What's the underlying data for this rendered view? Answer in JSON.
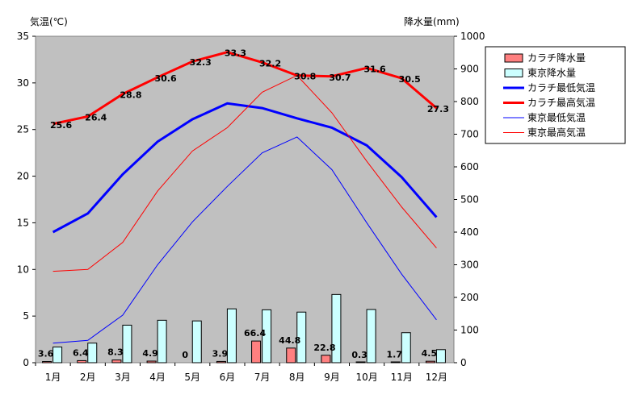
{
  "chart_data": {
    "type": "bar+line",
    "title": "",
    "ylabel_left": "気温(℃)",
    "ylabel_right": "降水量(mm)",
    "categories": [
      "1月",
      "2月",
      "3月",
      "4月",
      "5月",
      "6月",
      "7月",
      "8月",
      "9月",
      "10月",
      "11月",
      "12月"
    ],
    "ylim_left": [
      0,
      35
    ],
    "yticks_left": [
      "0",
      "5",
      "10",
      "15",
      "20",
      "25",
      "30",
      "35"
    ],
    "ylim_right": [
      0,
      1000
    ],
    "yticks_right": [
      "0",
      "100",
      "200",
      "300",
      "400",
      "500",
      "600",
      "700",
      "800",
      "900",
      "1000"
    ],
    "plot_background": "#c0c0c0",
    "series": [
      {
        "name": "カラチ降水量",
        "kind": "bar",
        "axis": "right",
        "color": "#ff8080",
        "values": [
          3.6,
          6.4,
          8.3,
          4.9,
          0,
          3.9,
          66.4,
          44.8,
          22.8,
          0.3,
          1.7,
          4.5
        ],
        "labels": [
          "3.6",
          "6.4",
          "8.3",
          "4.9",
          "0",
          "3.9",
          "66.4",
          "44.8",
          "22.8",
          "0.3",
          "1.7",
          "4.5"
        ]
      },
      {
        "name": "東京降水量",
        "kind": "bar",
        "axis": "right",
        "color": "#ccffff",
        "values": [
          48,
          60,
          115,
          130,
          128,
          165,
          162,
          155,
          209,
          163,
          92,
          40
        ]
      },
      {
        "name": "カラチ最低気温",
        "kind": "line",
        "axis": "left",
        "color": "#0000ff",
        "width": 3,
        "values": [
          14.0,
          16.0,
          20.2,
          23.7,
          26.1,
          27.8,
          27.3,
          26.2,
          25.2,
          23.3,
          19.9,
          15.6
        ]
      },
      {
        "name": "カラチ最高気温",
        "kind": "line",
        "axis": "left",
        "color": "#ff0000",
        "width": 3,
        "values": [
          25.6,
          26.4,
          28.8,
          30.6,
          32.3,
          33.3,
          32.2,
          30.8,
          30.7,
          31.6,
          30.5,
          27.3
        ],
        "labels": [
          "25.6",
          "26.4",
          "28.8",
          "30.6",
          "32.3",
          "33.3",
          "32.2",
          "30.8",
          "30.7",
          "31.6",
          "30.5",
          "27.3"
        ]
      },
      {
        "name": "東京最低気温",
        "kind": "line",
        "axis": "left",
        "color": "#0000ff",
        "width": 1,
        "values": [
          2.1,
          2.4,
          5.1,
          10.5,
          15.1,
          18.9,
          22.5,
          24.2,
          20.7,
          15.0,
          9.5,
          4.6
        ]
      },
      {
        "name": "東京最高気温",
        "kind": "line",
        "axis": "left",
        "color": "#ff0000",
        "width": 1,
        "values": [
          9.8,
          10.0,
          12.9,
          18.4,
          22.7,
          25.2,
          29.0,
          30.8,
          26.8,
          21.6,
          16.7,
          12.3
        ]
      }
    ],
    "legend_position": "top-right",
    "grid": false
  }
}
